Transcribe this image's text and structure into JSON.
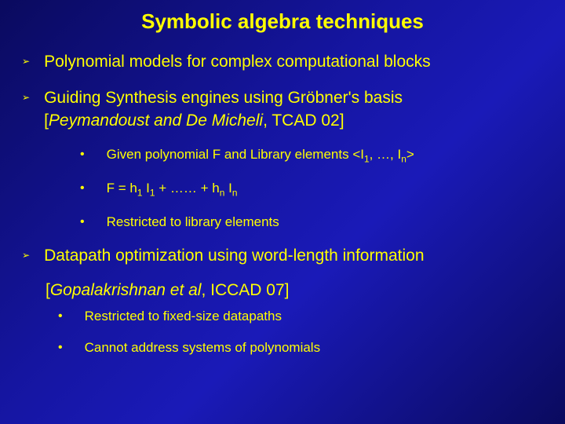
{
  "colors": {
    "background_gradient": [
      "#0a0a5e",
      "#1515a0",
      "#1a1ab8",
      "#0a0a5e"
    ],
    "text": "#ffff00"
  },
  "typography": {
    "title_fontsize": 26,
    "body_fontsize": 21,
    "sub_fontsize": 17,
    "font_family": "Arial"
  },
  "title": "Symbolic algebra techniques",
  "points": {
    "p1": "Polynomial models for complex computational blocks",
    "p2_line1": "Guiding Synthesis engines using Gröbner's basis",
    "p2_line2_pre": "[",
    "p2_line2_italic": "Peymandoust and De Micheli",
    "p2_line2_post": ", TCAD 02]",
    "p2_sub1_a": "Given polynomial F and Library elements <I",
    "p2_sub1_b": ", …, I",
    "p2_sub1_c": ">",
    "p2_sub2_a": "F = h",
    "p2_sub2_b": " I",
    "p2_sub2_c": " + …… + h",
    "p2_sub2_d": " I",
    "p2_sub3": "Restricted to library elements",
    "p3": "Datapath optimization using word-length information",
    "p3_ref_pre": "[",
    "p3_ref_italic": "Gopalakrishnan et al",
    "p3_ref_post": ", ICCAD 07]",
    "p3_sub1": "Restricted to fixed-size datapaths",
    "p3_sub2": "Cannot address systems of polynomials"
  },
  "subscripts": {
    "one": "1",
    "n": "n"
  },
  "bullets": {
    "arrow": "➢",
    "dot": "•"
  }
}
